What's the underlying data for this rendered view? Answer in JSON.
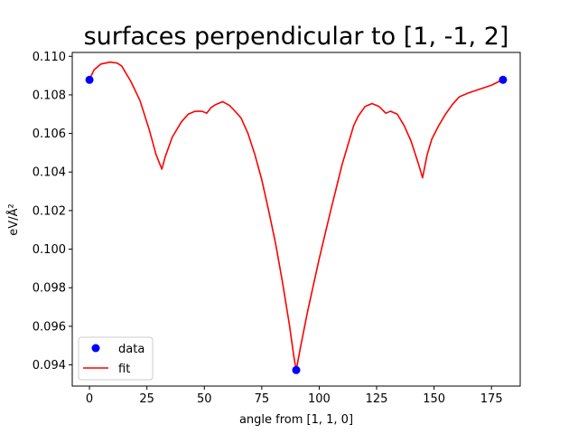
{
  "chart_data": {
    "type": "line",
    "title": "surfaces perpendicular to [1, -1, 2]",
    "xlabel": "angle from [1, 1, 0]",
    "ylabel": "eV/Å²",
    "xlim": [
      -7.5,
      187.5
    ],
    "ylim": [
      0.0929,
      0.1102
    ],
    "x_ticks": [
      0,
      25,
      50,
      75,
      100,
      125,
      150,
      175
    ],
    "y_ticks": [
      0.094,
      0.096,
      0.098,
      0.1,
      0.102,
      0.104,
      0.106,
      0.108,
      0.11
    ],
    "y_tick_labels": [
      "0.094",
      "0.096",
      "0.098",
      "0.100",
      "0.102",
      "0.104",
      "0.106",
      "0.108",
      "0.110"
    ],
    "grid": false,
    "legend_position": "lower-left",
    "series": [
      {
        "name": "data",
        "kind": "scatter",
        "color": "#0000ff",
        "x": [
          0,
          90,
          180
        ],
        "y": [
          0.10878,
          0.09373,
          0.10878
        ]
      },
      {
        "name": "fit",
        "kind": "line",
        "color": "#ff0000",
        "x": [
          0,
          2,
          5,
          9,
          12,
          14,
          18,
          22,
          26,
          29,
          31.5,
          33,
          36,
          40,
          43,
          46,
          49,
          51,
          53,
          55,
          58,
          61,
          63,
          66,
          69,
          72,
          75,
          78,
          81,
          84,
          87,
          89,
          90,
          92,
          95,
          100,
          105,
          110,
          115,
          117,
          120,
          123,
          126,
          129,
          131,
          134,
          137,
          140,
          143,
          145,
          147,
          149,
          152,
          155,
          158,
          161,
          165,
          170,
          175,
          180
        ],
        "y": [
          0.1088,
          0.1093,
          0.1096,
          0.1097,
          0.10965,
          0.1095,
          0.1087,
          0.1077,
          0.1062,
          0.1049,
          0.10415,
          0.1048,
          0.1058,
          0.1066,
          0.107,
          0.10715,
          0.10715,
          0.10705,
          0.10735,
          0.1075,
          0.10765,
          0.10745,
          0.1072,
          0.1068,
          0.106,
          0.1049,
          0.1036,
          0.102,
          0.1003,
          0.0983,
          0.0961,
          0.0944,
          0.09373,
          0.095,
          0.0968,
          0.0995,
          0.102,
          0.1044,
          0.1064,
          0.1069,
          0.1074,
          0.10755,
          0.1074,
          0.10705,
          0.10715,
          0.107,
          0.1064,
          0.1056,
          0.1045,
          0.1037,
          0.1049,
          0.1057,
          0.1064,
          0.107,
          0.1075,
          0.1079,
          0.1081,
          0.1083,
          0.1085,
          0.1088
        ]
      }
    ]
  }
}
